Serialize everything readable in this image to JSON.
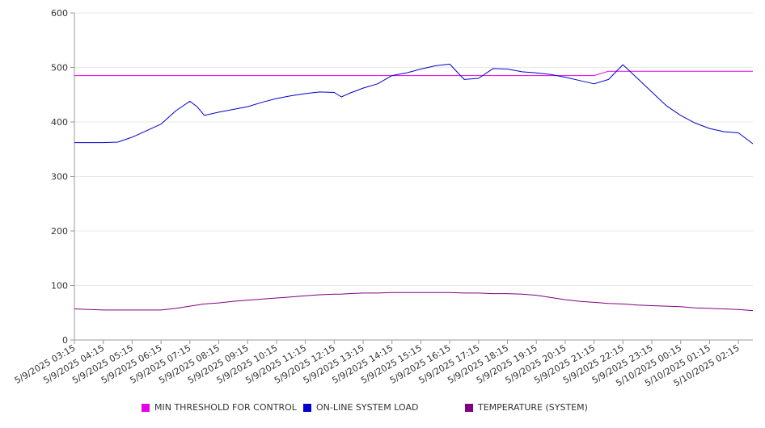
{
  "chart_data": {
    "type": "line",
    "title": "",
    "xlabel": "",
    "ylabel": "",
    "ylim": [
      0,
      600
    ],
    "y_ticks": [
      0,
      100,
      200,
      300,
      400,
      500,
      600
    ],
    "grid": true,
    "legend_position": "bottom",
    "x_tick_labels": [
      "5/9/2025 03:15",
      "5/9/2025 04:15",
      "5/9/2025 05:15",
      "5/9/2025 06:15",
      "5/9/2025 07:15",
      "5/9/2025 08:15",
      "5/9/2025 09:15",
      "5/9/2025 10:15",
      "5/9/2025 11:15",
      "5/9/2025 12:15",
      "5/9/2025 13:15",
      "5/9/2025 14:15",
      "5/9/2025 15:15",
      "5/9/2025 16:15",
      "5/9/2025 17:15",
      "5/9/2025 18:15",
      "5/9/2025 19:15",
      "5/9/2025 20:15",
      "5/9/2025 21:15",
      "5/9/2025 22:15",
      "5/9/2025 23:15",
      "5/10/2025 00:15",
      "5/10/2025 01:15",
      "5/10/2025 02:15"
    ],
    "x": [
      "5/9/2025 03:15",
      "5/9/2025 03:45",
      "5/9/2025 04:15",
      "5/9/2025 04:45",
      "5/9/2025 05:15",
      "5/9/2025 05:45",
      "5/9/2025 06:15",
      "5/9/2025 06:45",
      "5/9/2025 07:15",
      "5/9/2025 07:30",
      "5/9/2025 07:45",
      "5/9/2025 08:15",
      "5/9/2025 08:45",
      "5/9/2025 09:15",
      "5/9/2025 09:45",
      "5/9/2025 10:15",
      "5/9/2025 10:45",
      "5/9/2025 11:15",
      "5/9/2025 11:45",
      "5/9/2025 12:15",
      "5/9/2025 12:30",
      "5/9/2025 12:45",
      "5/9/2025 13:15",
      "5/9/2025 13:45",
      "5/9/2025 14:15",
      "5/9/2025 14:45",
      "5/9/2025 15:15",
      "5/9/2025 15:45",
      "5/9/2025 16:15",
      "5/9/2025 16:45",
      "5/9/2025 17:15",
      "5/9/2025 17:45",
      "5/9/2025 18:15",
      "5/9/2025 18:45",
      "5/9/2025 19:15",
      "5/9/2025 19:45",
      "5/9/2025 20:15",
      "5/9/2025 20:45",
      "5/9/2025 21:15",
      "5/9/2025 21:45",
      "5/9/2025 22:15",
      "5/9/2025 22:45",
      "5/9/2025 23:15",
      "5/9/2025 23:45",
      "5/10/2025 00:15",
      "5/10/2025 00:45",
      "5/10/2025 01:15",
      "5/10/2025 01:45",
      "5/10/2025 02:15",
      "5/10/2025 02:45"
    ],
    "series": [
      {
        "name": "MIN THRESHOLD FOR CONTROL",
        "color": "#e600e6",
        "values": [
          485,
          485,
          485,
          485,
          485,
          485,
          485,
          485,
          485,
          485,
          485,
          485,
          485,
          485,
          485,
          485,
          485,
          485,
          485,
          485,
          485,
          485,
          485,
          485,
          485,
          485,
          485,
          485,
          485,
          485,
          485,
          485,
          485,
          485,
          485,
          485,
          485,
          485,
          485,
          493,
          493,
          493,
          493,
          493,
          493,
          493,
          493,
          493,
          493,
          493
        ]
      },
      {
        "name": "ON-LINE SYSTEM LOAD",
        "color": "#0000cc",
        "values": [
          362,
          362,
          362,
          363,
          372,
          384,
          396,
          420,
          438,
          428,
          412,
          418,
          423,
          428,
          436,
          443,
          448,
          452,
          455,
          454,
          446,
          452,
          462,
          470,
          485,
          490,
          497,
          503,
          506,
          478,
          480,
          498,
          497,
          492,
          490,
          487,
          482,
          476,
          470,
          478,
          505,
          480,
          455,
          430,
          412,
          398,
          388,
          382,
          380,
          360
        ]
      },
      {
        "name": "TEMPERATURE (SYSTEM)",
        "color": "#800080",
        "values": [
          57,
          56,
          55,
          55,
          55,
          55,
          55,
          58,
          62,
          64,
          66,
          68,
          71,
          73,
          75,
          77,
          79,
          81,
          83,
          84,
          84,
          85,
          86,
          86,
          87,
          87,
          87,
          87,
          87,
          86,
          86,
          85,
          85,
          84,
          82,
          78,
          74,
          71,
          69,
          67,
          66,
          64,
          63,
          62,
          61,
          59,
          58,
          57,
          56,
          54
        ]
      }
    ]
  }
}
